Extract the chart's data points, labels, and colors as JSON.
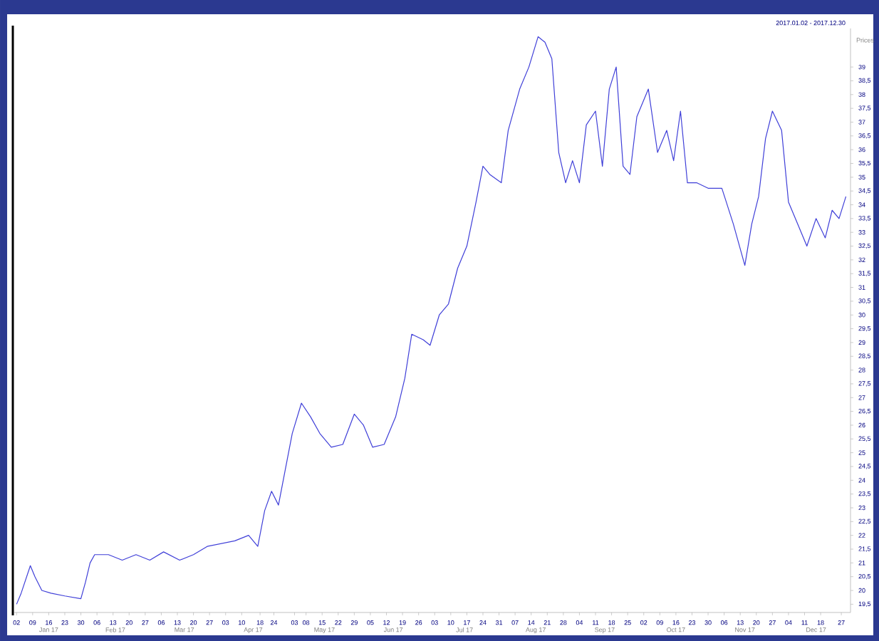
{
  "chart_data": {
    "type": "line",
    "ylabel": "Prices",
    "annotations": [
      "2017.01.02 - 2017.12.30"
    ],
    "x": [
      "2017-01-02",
      "2017-01-04",
      "2017-01-08",
      "2017-01-10",
      "2017-01-13",
      "2017-01-17",
      "2017-01-23",
      "2017-01-30",
      "2017-02-01",
      "2017-02-03",
      "2017-02-05",
      "2017-02-11",
      "2017-02-17",
      "2017-02-23",
      "2017-03-01",
      "2017-03-07",
      "2017-03-14",
      "2017-03-20",
      "2017-03-26",
      "2017-04-01",
      "2017-04-07",
      "2017-04-13",
      "2017-04-17",
      "2017-04-20",
      "2017-04-23",
      "2017-04-26",
      "2017-04-29",
      "2017-05-02",
      "2017-05-06",
      "2017-05-10",
      "2017-05-14",
      "2017-05-19",
      "2017-05-24",
      "2017-05-29",
      "2017-06-02",
      "2017-06-06",
      "2017-06-11",
      "2017-06-16",
      "2017-06-20",
      "2017-06-23",
      "2017-06-28",
      "2017-07-01",
      "2017-07-05",
      "2017-07-09",
      "2017-07-13",
      "2017-07-17",
      "2017-07-21",
      "2017-07-24",
      "2017-07-27",
      "2017-08-01",
      "2017-08-04",
      "2017-08-09",
      "2017-08-13",
      "2017-08-17",
      "2017-08-20",
      "2017-08-23",
      "2017-08-26",
      "2017-08-29",
      "2017-09-01",
      "2017-09-04",
      "2017-09-07",
      "2017-09-11",
      "2017-09-14",
      "2017-09-17",
      "2017-09-20",
      "2017-09-23",
      "2017-09-26",
      "2017-09-29",
      "2017-10-04",
      "2017-10-08",
      "2017-10-12",
      "2017-10-15",
      "2017-10-18",
      "2017-10-21",
      "2017-10-25",
      "2017-10-30",
      "2017-11-05",
      "2017-11-10",
      "2017-11-15",
      "2017-11-18",
      "2017-11-21",
      "2017-11-24",
      "2017-11-27",
      "2017-12-01",
      "2017-12-04",
      "2017-12-08",
      "2017-12-12",
      "2017-12-16",
      "2017-12-20",
      "2017-12-23",
      "2017-12-26",
      "2017-12-29"
    ],
    "series": [
      {
        "color": "#3f3fd8",
        "values": [
          19.5,
          19.9,
          20.9,
          20.5,
          20.0,
          19.9,
          19.8,
          19.7,
          20.3,
          21.0,
          21.3,
          21.3,
          21.1,
          21.3,
          21.1,
          21.4,
          21.1,
          21.3,
          21.6,
          21.7,
          21.8,
          22.0,
          21.6,
          22.9,
          23.6,
          23.1,
          24.4,
          25.7,
          26.8,
          26.3,
          25.7,
          25.2,
          25.3,
          26.4,
          26.0,
          25.2,
          25.3,
          26.3,
          27.7,
          29.3,
          29.1,
          28.9,
          30.0,
          30.4,
          31.7,
          32.5,
          34.1,
          35.4,
          35.1,
          34.8,
          36.7,
          38.2,
          39.0,
          40.1,
          39.9,
          39.3,
          35.9,
          34.8,
          35.6,
          34.8,
          36.9,
          37.4,
          35.4,
          38.2,
          39.0,
          35.4,
          35.1,
          37.2,
          38.2,
          35.9,
          36.7,
          35.6,
          37.4,
          34.8,
          34.8,
          34.6,
          34.6,
          33.3,
          31.8,
          33.3,
          34.3,
          36.4,
          37.4,
          36.7,
          34.1,
          33.3,
          32.5,
          33.5,
          32.8,
          33.8,
          33.5,
          34.3
        ]
      }
    ],
    "xlim": [
      "2017-01-01",
      "2017-12-31"
    ],
    "xticks": [
      {
        "value": "2017-01-02",
        "label": "02"
      },
      {
        "value": "2017-01-09",
        "label": "09"
      },
      {
        "value": "2017-01-16",
        "label": "16"
      },
      {
        "value": "2017-01-23",
        "label": "23"
      },
      {
        "value": "2017-01-30",
        "label": "30"
      },
      {
        "value": "2017-02-06",
        "label": "06"
      },
      {
        "value": "2017-02-13",
        "label": "13"
      },
      {
        "value": "2017-02-20",
        "label": "20"
      },
      {
        "value": "2017-02-27",
        "label": "27"
      },
      {
        "value": "2017-03-06",
        "label": "06"
      },
      {
        "value": "2017-03-13",
        "label": "13"
      },
      {
        "value": "2017-03-20",
        "label": "20"
      },
      {
        "value": "2017-03-27",
        "label": "27"
      },
      {
        "value": "2017-04-03",
        "label": "03"
      },
      {
        "value": "2017-04-10",
        "label": "10"
      },
      {
        "value": "2017-04-18",
        "label": "18"
      },
      {
        "value": "2017-04-24",
        "label": "24"
      },
      {
        "value": "2017-05-03",
        "label": "03"
      },
      {
        "value": "2017-05-08",
        "label": "08"
      },
      {
        "value": "2017-05-15",
        "label": "15"
      },
      {
        "value": "2017-05-22",
        "label": "22"
      },
      {
        "value": "2017-05-29",
        "label": "29"
      },
      {
        "value": "2017-06-05",
        "label": "05"
      },
      {
        "value": "2017-06-12",
        "label": "12"
      },
      {
        "value": "2017-06-19",
        "label": "19"
      },
      {
        "value": "2017-06-26",
        "label": "26"
      },
      {
        "value": "2017-07-03",
        "label": "03"
      },
      {
        "value": "2017-07-10",
        "label": "10"
      },
      {
        "value": "2017-07-17",
        "label": "17"
      },
      {
        "value": "2017-07-24",
        "label": "24"
      },
      {
        "value": "2017-07-31",
        "label": "31"
      },
      {
        "value": "2017-08-07",
        "label": "07"
      },
      {
        "value": "2017-08-14",
        "label": "14"
      },
      {
        "value": "2017-08-21",
        "label": "21"
      },
      {
        "value": "2017-08-28",
        "label": "28"
      },
      {
        "value": "2017-09-04",
        "label": "04"
      },
      {
        "value": "2017-09-11",
        "label": "11"
      },
      {
        "value": "2017-09-18",
        "label": "18"
      },
      {
        "value": "2017-09-25",
        "label": "25"
      },
      {
        "value": "2017-10-02",
        "label": "02"
      },
      {
        "value": "2017-10-09",
        "label": "09"
      },
      {
        "value": "2017-10-16",
        "label": "16"
      },
      {
        "value": "2017-10-23",
        "label": "23"
      },
      {
        "value": "2017-10-30",
        "label": "30"
      },
      {
        "value": "2017-11-06",
        "label": "06"
      },
      {
        "value": "2017-11-13",
        "label": "13"
      },
      {
        "value": "2017-11-20",
        "label": "20"
      },
      {
        "value": "2017-11-27",
        "label": "27"
      },
      {
        "value": "2017-12-04",
        "label": "04"
      },
      {
        "value": "2017-12-11",
        "label": "11"
      },
      {
        "value": "2017-12-18",
        "label": "18"
      },
      {
        "value": "2017-12-27",
        "label": "27"
      }
    ],
    "x2lim": [
      "2017-01-01",
      "2017-12-31"
    ],
    "x2ticks": [
      {
        "value": "2017-01-16",
        "label": "Jan 17"
      },
      {
        "value": "2017-02-14",
        "label": "Feb 17"
      },
      {
        "value": "2017-03-16",
        "label": "Mar 17"
      },
      {
        "value": "2017-04-15",
        "label": "Apr 17"
      },
      {
        "value": "2017-05-16",
        "label": "May 17"
      },
      {
        "value": "2017-06-15",
        "label": "Jun 17"
      },
      {
        "value": "2017-07-16",
        "label": "Jul 17"
      },
      {
        "value": "2017-08-16",
        "label": "Aug 17"
      },
      {
        "value": "2017-09-15",
        "label": "Sep 17"
      },
      {
        "value": "2017-10-16",
        "label": "Oct 17"
      },
      {
        "value": "2017-11-15",
        "label": "Nov 17"
      },
      {
        "value": "2017-12-16",
        "label": "Dec 17"
      }
    ],
    "ylim": [
      19.2,
      40.4
    ],
    "yticks": [
      {
        "value": 19.5,
        "label": "19,5"
      },
      20,
      {
        "value": 20.5,
        "label": "20,5"
      },
      21,
      {
        "value": 21.5,
        "label": "21,5"
      },
      22,
      {
        "value": 22.5,
        "label": "22,5"
      },
      23,
      {
        "value": 23.5,
        "label": "23,5"
      },
      24,
      {
        "value": 24.5,
        "label": "24,5"
      },
      25,
      {
        "value": 25.5,
        "label": "25,5"
      },
      26,
      {
        "value": 26.5,
        "label": "26,5"
      },
      27,
      {
        "value": 27.5,
        "label": "27,5"
      },
      28,
      {
        "value": 28.5,
        "label": "28,5"
      },
      29,
      {
        "value": 29.5,
        "label": "29,5"
      },
      30,
      {
        "value": 30.5,
        "label": "30,5"
      },
      31,
      {
        "value": 31.5,
        "label": "31,5"
      },
      32,
      {
        "value": 32.5,
        "label": "32,5"
      },
      33,
      {
        "value": 33.5,
        "label": "33,5"
      },
      34,
      {
        "value": 34.5,
        "label": "34,5"
      },
      35,
      {
        "value": 35.5,
        "label": "35,5"
      },
      36,
      {
        "value": 36.5,
        "label": "36,5"
      },
      37,
      {
        "value": 37.5,
        "label": "37,5"
      },
      38,
      {
        "value": 38.5,
        "label": "38,5"
      },
      39
    ],
    "grid": false,
    "marker": "none",
    "line_style": "solid"
  }
}
